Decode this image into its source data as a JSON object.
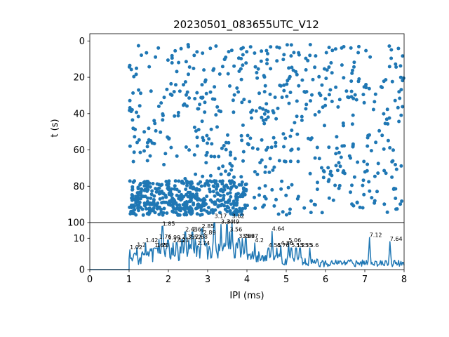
{
  "colors": {
    "series": "#1f77b4",
    "axes": "#000000",
    "background": "#ffffff"
  },
  "chart_data": [
    {
      "type": "scatter",
      "title": "20230501_083655UTC_V12",
      "xlabel": "",
      "ylabel": "t (s)",
      "xlim": [
        0,
        8
      ],
      "ylim": [
        100,
        -4
      ],
      "y_inverted": true,
      "y_ticks": [
        0,
        20,
        40,
        60,
        80,
        100
      ],
      "x_ticks_shown": false,
      "grid": false,
      "points_summary": {
        "x_range": [
          1.0,
          8.0
        ],
        "y_range": [
          2,
          96
        ],
        "dense_band": {
          "x_range": [
            1.0,
            4.0
          ],
          "y_range": [
            77,
            96
          ]
        },
        "approx_count": 1000
      }
    },
    {
      "type": "line",
      "xlabel": "IPI (ms)",
      "ylabel": "",
      "xlim": [
        0,
        8
      ],
      "ylim": [
        0,
        15
      ],
      "x_ticks": [
        0,
        1,
        2,
        3,
        4,
        5,
        6,
        7,
        8
      ],
      "y_ticks": [
        0,
        10
      ],
      "grid": false,
      "baseline": {
        "x_range": [
          0,
          1.0
        ],
        "value": 0
      },
      "peaks": [
        {
          "x": 1.02,
          "y": 6.3,
          "label": "1.02"
        },
        {
          "x": 1.2,
          "y": 7.0,
          "label": "1.2"
        },
        {
          "x": 1.42,
          "y": 8.5,
          "label": "1.42"
        },
        {
          "x": 1.65,
          "y": 6.9,
          "label": "1.65"
        },
        {
          "x": 1.7,
          "y": 6.9,
          "label": "1.70"
        },
        {
          "x": 1.76,
          "y": 9.6,
          "label": "1.76"
        },
        {
          "x": 1.85,
          "y": 13.8,
          "label": "1.85"
        },
        {
          "x": 1.99,
          "y": 9.4,
          "label": "1.99"
        },
        {
          "x": 2.12,
          "y": 8.5,
          "label": "2.12"
        },
        {
          "x": 2.21,
          "y": 8.6,
          "label": "2.21"
        },
        {
          "x": 2.35,
          "y": 9.6,
          "label": "2.35"
        },
        {
          "x": 2.43,
          "y": 12.0,
          "label": "2.43"
        },
        {
          "x": 2.52,
          "y": 9.5,
          "label": "2.52"
        },
        {
          "x": 2.61,
          "y": 12.0,
          "label": "2.61"
        },
        {
          "x": 2.68,
          "y": 9.6,
          "label": "2.68"
        },
        {
          "x": 2.74,
          "y": 7.6,
          "label": "2.74"
        },
        {
          "x": 2.85,
          "y": 13.0,
          "label": "2.85"
        },
        {
          "x": 2.89,
          "y": 11.0,
          "label": "2.89"
        },
        {
          "x": 3.17,
          "y": 16.2,
          "label": "3.17"
        },
        {
          "x": 3.34,
          "y": 14.4,
          "label": "3.34"
        },
        {
          "x": 3.49,
          "y": 14.4,
          "label": "3.49"
        },
        {
          "x": 3.56,
          "y": 12.0,
          "label": "3.56"
        },
        {
          "x": 3.62,
          "y": 16.2,
          "label": "3.62"
        },
        {
          "x": 3.79,
          "y": 9.9,
          "label": "3.79"
        },
        {
          "x": 3.88,
          "y": 9.9,
          "label": "3.88"
        },
        {
          "x": 3.97,
          "y": 9.9,
          "label": "3.97"
        },
        {
          "x": 4.2,
          "y": 8.5,
          "label": "4.2"
        },
        {
          "x": 4.55,
          "y": 6.9,
          "label": "4.55"
        },
        {
          "x": 4.64,
          "y": 12.2,
          "label": "4.64"
        },
        {
          "x": 4.76,
          "y": 6.9,
          "label": "4.76"
        },
        {
          "x": 4.86,
          "y": 7.6,
          "label": "4.86"
        },
        {
          "x": 5.06,
          "y": 8.5,
          "label": "5.06"
        },
        {
          "x": 5.13,
          "y": 6.9,
          "label": "5.13"
        },
        {
          "x": 5.25,
          "y": 6.9,
          "label": "5.25"
        },
        {
          "x": 5.35,
          "y": 6.9,
          "label": "5.35"
        },
        {
          "x": 5.6,
          "y": 6.9,
          "label": "5.6"
        },
        {
          "x": 7.12,
          "y": 10.2,
          "label": "7.12"
        },
        {
          "x": 7.64,
          "y": 8.9,
          "label": "7.64"
        }
      ]
    }
  ]
}
